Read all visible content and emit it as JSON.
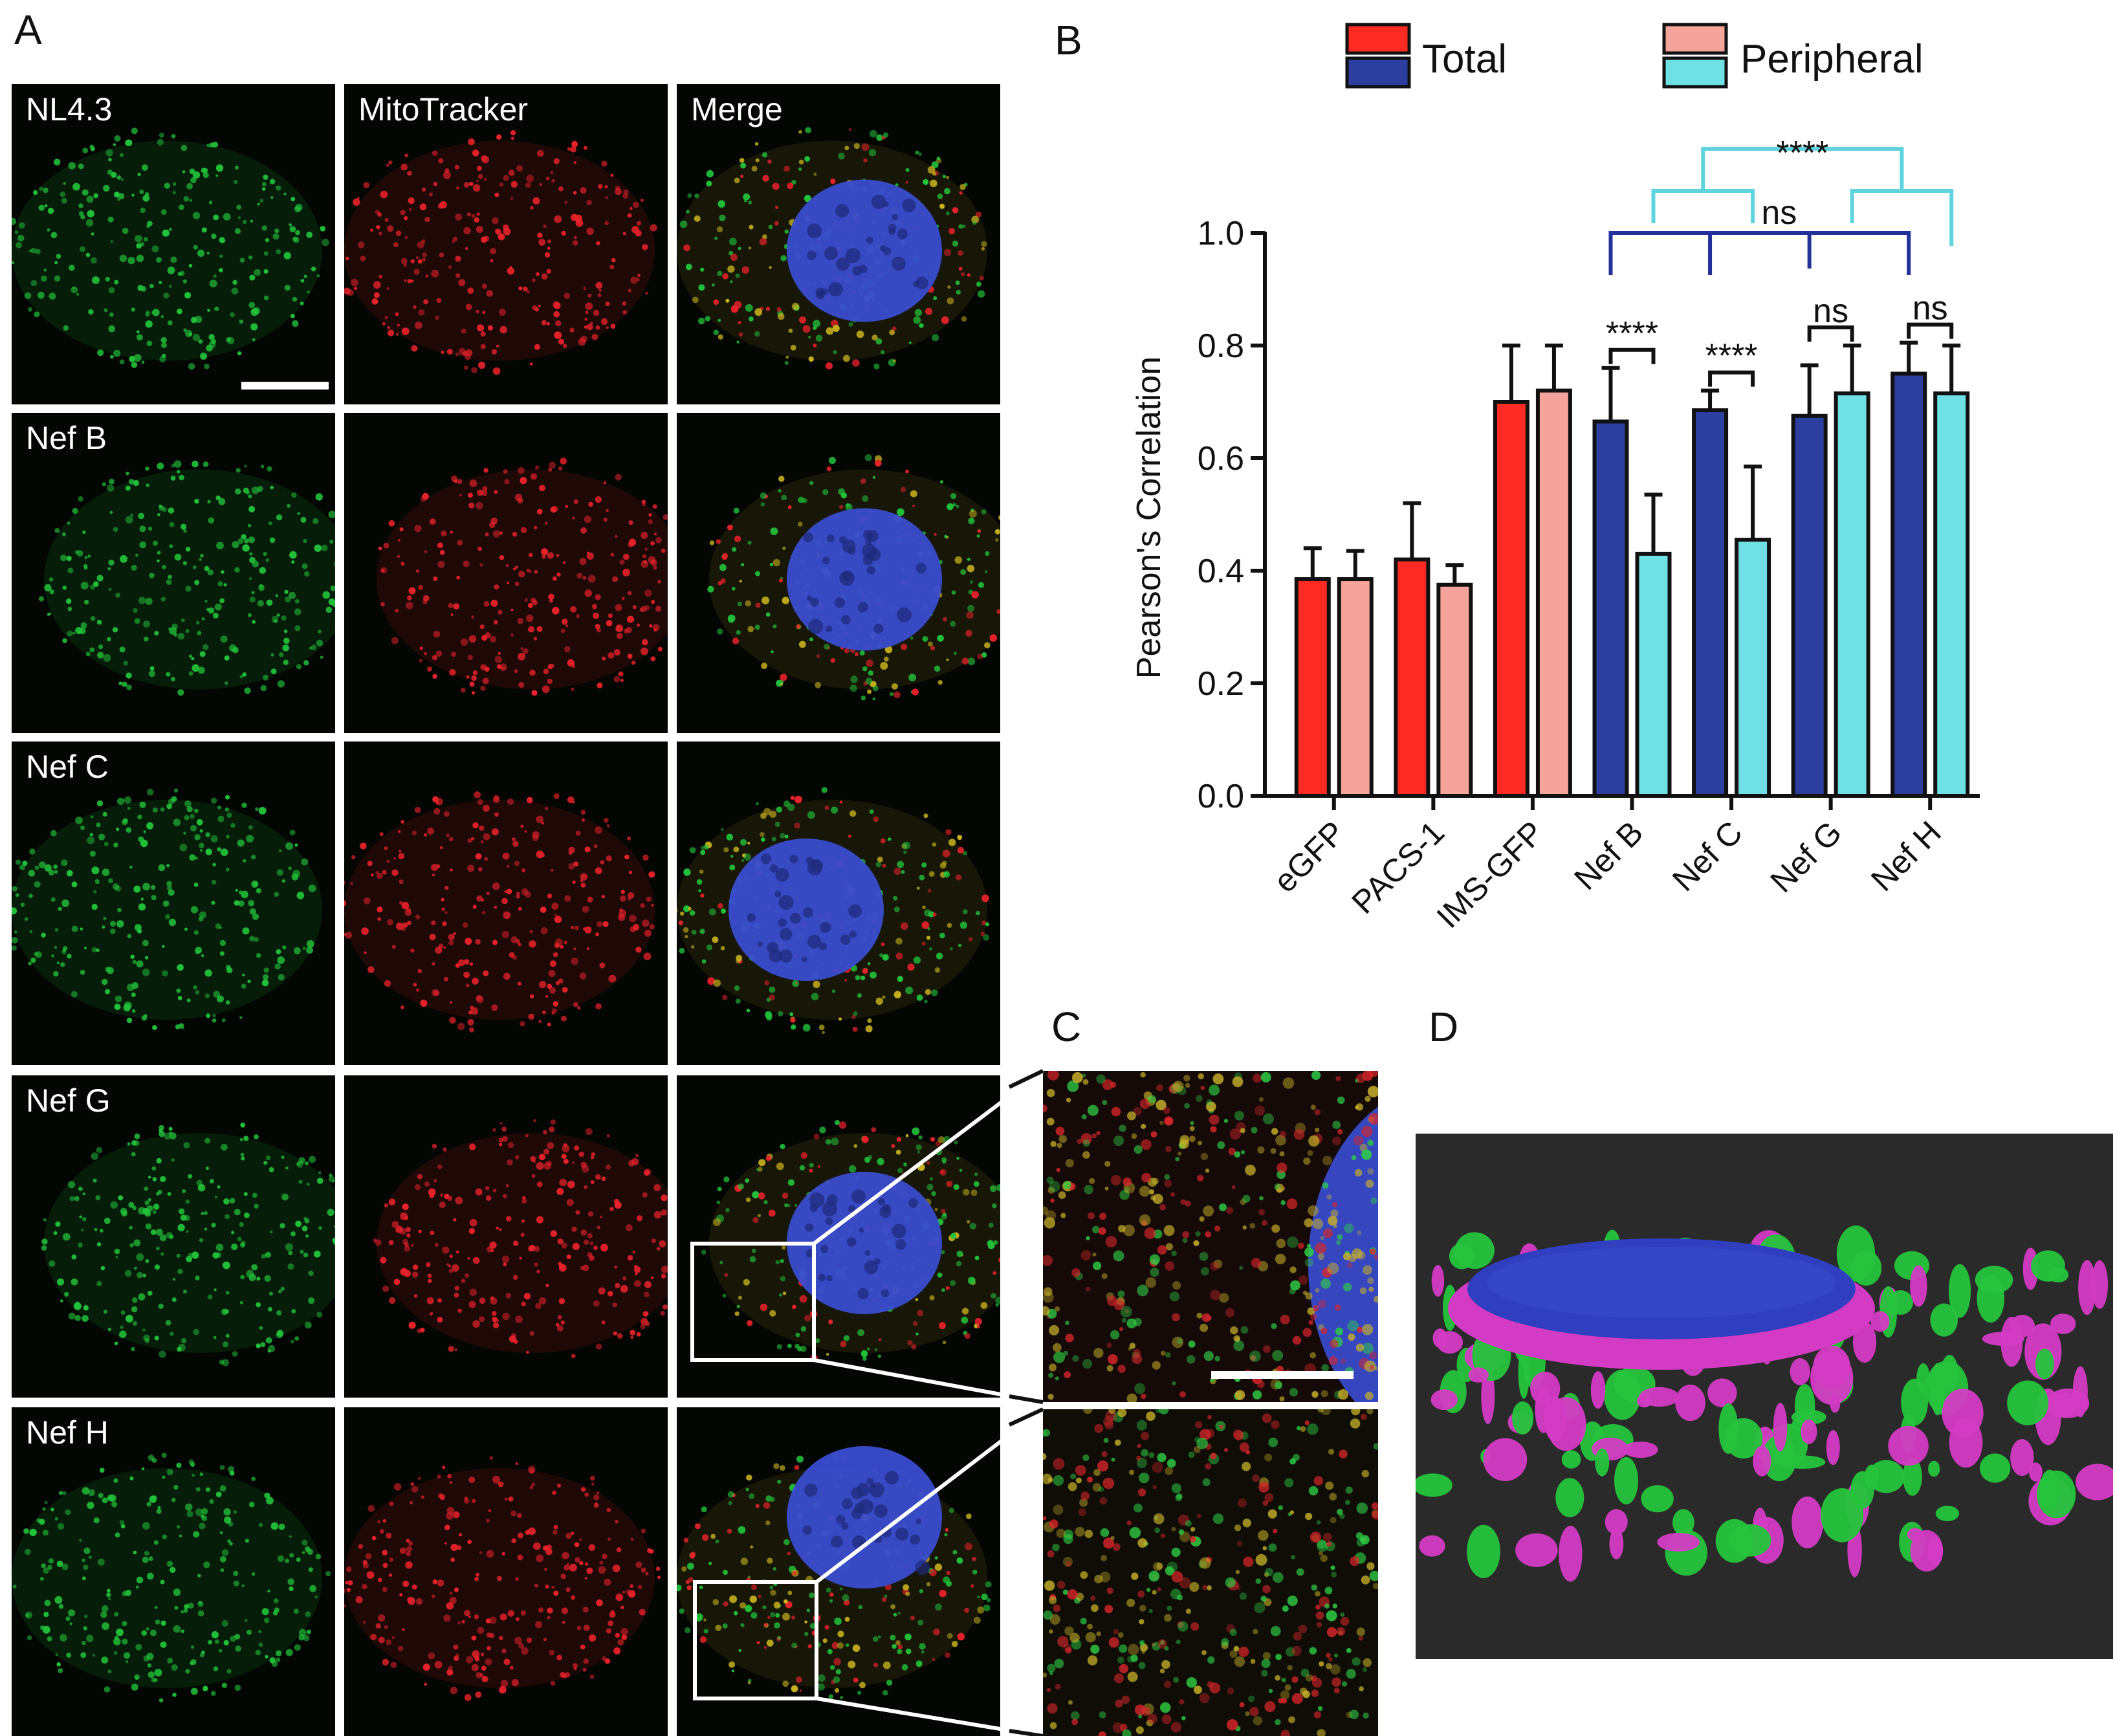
{
  "panels": {
    "a": "A",
    "b": "B",
    "c": "C",
    "d": "D"
  },
  "micrograph_columns": [
    "NL4.3",
    "MitoTracker",
    "Merge"
  ],
  "micrograph_rows": [
    "NL4.3",
    "Nef B",
    "Nef C",
    "Nef G",
    "Nef H"
  ],
  "colors": {
    "total_control": "#ff2a22",
    "peripheral_control": "#f4a49a",
    "total_nef": "#2d3f9e",
    "peripheral_nef": "#6fe0e4",
    "green_channel": "#22c23a",
    "red_channel": "#e8222a",
    "nucleus": "#3a4ccf",
    "magenta_surface": "#d43bc4",
    "bracket_ns": "#22319a",
    "bracket_cyan": "#5fd4de"
  },
  "chart_data": {
    "type": "bar",
    "ylabel": "Pearson's Correlation",
    "xlabel": "",
    "ylim": [
      0.0,
      1.0
    ],
    "yticks": [
      "0.0",
      "0.2",
      "0.4",
      "0.6",
      "0.8",
      "1.0"
    ],
    "categories": [
      "eGFP",
      "PACS-1",
      "IMS-GFP",
      "Nef B",
      "Nef C",
      "Nef G",
      "Nef H"
    ],
    "series": [
      {
        "name": "Total",
        "values": [
          0.385,
          0.42,
          0.7,
          0.665,
          0.685,
          0.675,
          0.75
        ],
        "errors": [
          0.055,
          0.1,
          0.1,
          0.095,
          0.035,
          0.09,
          0.055
        ]
      },
      {
        "name": "Peripheral",
        "values": [
          0.385,
          0.375,
          0.72,
          0.43,
          0.455,
          0.715,
          0.715
        ],
        "errors": [
          0.05,
          0.035,
          0.08,
          0.105,
          0.13,
          0.085,
          0.085
        ]
      }
    ],
    "legend": {
      "placement": "top",
      "entries": [
        {
          "label": "Total",
          "colors": [
            "#ff2a22",
            "#2d3f9e"
          ]
        },
        {
          "label": "Peripheral",
          "colors": [
            "#f4a49a",
            "#6fe0e4"
          ]
        }
      ]
    },
    "significance": [
      {
        "label": "****",
        "groups": [
          "Nef B"
        ]
      },
      {
        "label": "****",
        "groups": [
          "Nef C"
        ]
      },
      {
        "label": "ns",
        "groups": [
          "Nef G"
        ]
      },
      {
        "label": "ns",
        "groups": [
          "Nef H"
        ]
      },
      {
        "label": "ns",
        "groups": [
          "Nef B",
          "Nef C",
          "Nef G",
          "Nef H"
        ],
        "series": "Total"
      },
      {
        "label": "****",
        "groups": [
          "Nef B",
          "Nef C",
          "Nef G",
          "Nef H"
        ],
        "series": "Peripheral"
      }
    ]
  }
}
